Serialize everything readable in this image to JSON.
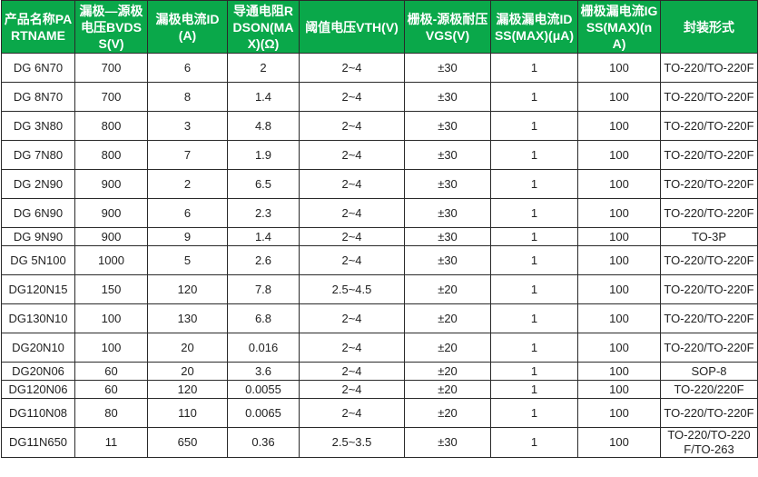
{
  "header_color": "#0aa84a",
  "columns": [
    "产品名称PARTNAME",
    "漏极—源极电压BVDSS(V)",
    "漏极电流ID(A)",
    "导通电阻RDSON(MAX)(Ω)",
    "阈值电压VTH(V)",
    "栅极-源极耐压VGS(V)",
    "漏极漏电流IDSS(MAX)(μA)",
    "栅极漏电流IGSS(MAX)(nA)",
    "封装形式"
  ],
  "rows": [
    [
      "DG 6N70",
      "700",
      "6",
      "2",
      "2~4",
      "±30",
      "1",
      "100",
      "TO-220/TO-220F"
    ],
    [
      "DG 8N70",
      "700",
      "8",
      "1.4",
      "2~4",
      "±30",
      "1",
      "100",
      "TO-220/TO-220F"
    ],
    [
      "DG 3N80",
      "800",
      "3",
      "4.8",
      "2~4",
      "±30",
      "1",
      "100",
      "TO-220/TO-220F"
    ],
    [
      "DG 7N80",
      "800",
      "7",
      "1.9",
      "2~4",
      "±30",
      "1",
      "100",
      "TO-220/TO-220F"
    ],
    [
      "DG 2N90",
      "900",
      "2",
      "6.5",
      "2~4",
      "±30",
      "1",
      "100",
      "TO-220/TO-220F"
    ],
    [
      "DG 6N90",
      "900",
      "6",
      "2.3",
      "2~4",
      "±30",
      "1",
      "100",
      "TO-220/TO-220F"
    ],
    [
      "DG 9N90",
      "900",
      "9",
      "1.4",
      "2~4",
      "±30",
      "1",
      "100",
      "TO-3P"
    ],
    [
      "DG 5N100",
      "1000",
      "5",
      "2.6",
      "2~4",
      "±30",
      "1",
      "100",
      "TO-220/TO-220F"
    ],
    [
      "DG120N15",
      "150",
      "120",
      "7.8",
      "2.5~4.5",
      "±20",
      "1",
      "100",
      "TO-220/TO-220F"
    ],
    [
      "DG130N10",
      "100",
      "130",
      "6.8",
      "2~4",
      "±20",
      "1",
      "100",
      "TO-220/TO-220F"
    ],
    [
      "DG20N10",
      "100",
      "20",
      "0.016",
      "2~4",
      "±20",
      "1",
      "100",
      "TO-220/TO-220F"
    ],
    [
      "DG20N06",
      "60",
      "20",
      "3.6",
      "2~4",
      "±20",
      "1",
      "100",
      "SOP-8"
    ],
    [
      "DG120N06",
      "60",
      "120",
      "0.0055",
      "2~4",
      "±20",
      "1",
      "100",
      "TO-220/220F"
    ],
    [
      "DG110N08",
      "80",
      "110",
      "0.0065",
      "2~4",
      "±20",
      "1",
      "100",
      "TO-220/TO-220F"
    ],
    [
      "DG11N650",
      "11",
      "650",
      "0.36",
      "2.5~3.5",
      "±30",
      "1",
      "100",
      "TO-220/TO-220F/TO-263"
    ]
  ]
}
